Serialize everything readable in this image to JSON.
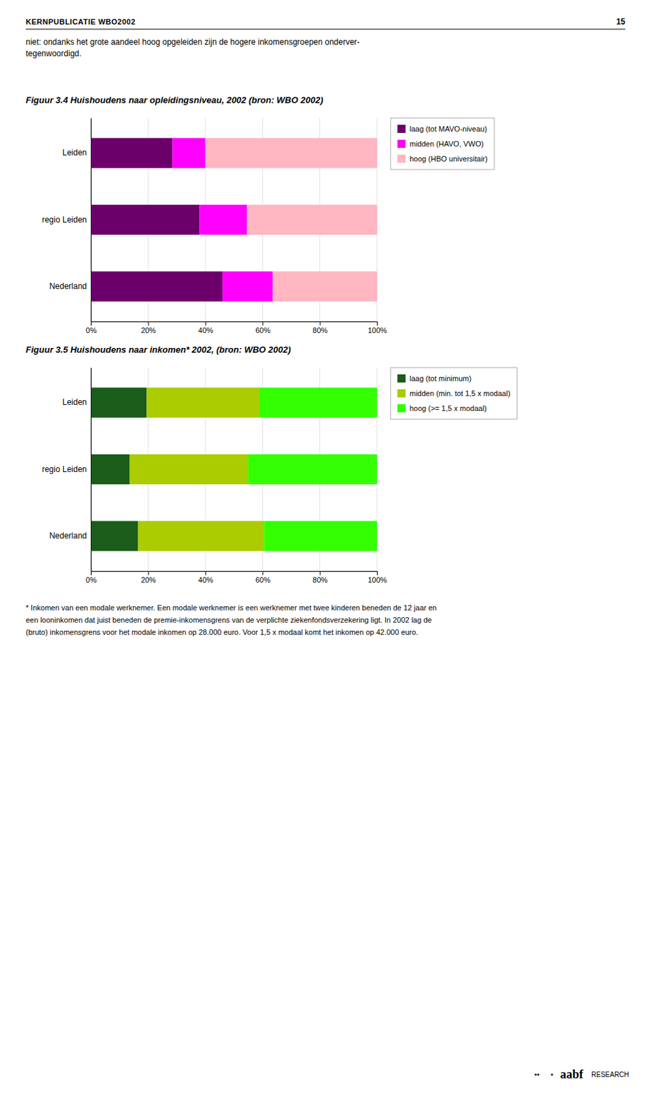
{
  "page_title": "KERNPUBLICATIE WBO2002",
  "page_number": "15",
  "intro": [
    "niet: ondanks het grote aandeel hoog opgeleiden zijn de hogere inkomensgroepen onderver-",
    "tegenwoordigd."
  ],
  "footnotes": [
    "* Inkomen van een modale werknemer. Een modale werknemer is een werknemer met twee kinderen beneden de 12 jaar en",
    "een looninkomen dat juist beneden de premie-inkomensgrens van de verplichte ziekenfondsverzekering ligt. In 2002 lag de",
    "(bruto) inkomensgrens voor het modale inkomen op 28.000 euro. Voor 1,5 x modaal komt het inkomen op 42.000 euro."
  ],
  "logo": [
    "••",
    "•",
    "aabf",
    "RESEARCH"
  ],
  "chart_data": [
    {
      "type": "bar",
      "orientation": "horizontal",
      "stacked": true,
      "title": "Figuur 3.4 Huishoudens naar opleidingsniveau, 2002 (bron: WBO 2002)",
      "categories": [
        "Leiden",
        "regio Leiden",
        "Nederland"
      ],
      "series": [
        {
          "name": "laag (tot MAVO-niveau)",
          "color": "#6B006B",
          "values": [
            0.285,
            0.38,
            0.46
          ]
        },
        {
          "name": "midden (HAVO, VWO)",
          "color": "#FF00FF",
          "values": [
            0.115,
            0.165,
            0.175
          ]
        },
        {
          "name": "hoog (HBO universitair)",
          "color": "#FFB6C1",
          "values": [
            0.6,
            0.455,
            0.365
          ]
        }
      ],
      "xlim": [
        0,
        1.0
      ],
      "xticks": [
        {
          "value": 0,
          "label": "0%"
        },
        {
          "value": 0.2,
          "label": "20%"
        },
        {
          "value": 0.4,
          "label": "40%"
        },
        {
          "value": 0.6,
          "label": "60%"
        },
        {
          "value": 0.8,
          "label": "80%"
        },
        {
          "value": 1.0,
          "label": "100%"
        }
      ],
      "grid": true,
      "legend": "right"
    },
    {
      "type": "bar",
      "orientation": "horizontal",
      "stacked": true,
      "title": "Figuur 3.5 Huishoudens naar inkomen* 2002, (bron: WBO 2002)",
      "categories": [
        "Leiden",
        "regio Leiden",
        "Nederland"
      ],
      "series": [
        {
          "name": "laag (tot minimum)",
          "color": "#1A5C1A",
          "values": [
            0.195,
            0.135,
            0.165
          ]
        },
        {
          "name": "midden (min. tot 1,5 x modaal)",
          "color": "#AACC00",
          "values": [
            0.395,
            0.415,
            0.44
          ]
        },
        {
          "name": "hoog (>= 1,5 x modaal)",
          "color": "#33FF00",
          "values": [
            0.41,
            0.45,
            0.395
          ]
        }
      ],
      "xlim": [
        0,
        1.0
      ],
      "xticks": [
        {
          "value": 0,
          "label": "0%"
        },
        {
          "value": 0.2,
          "label": "20%"
        },
        {
          "value": 0.4,
          "label": "40%"
        },
        {
          "value": 0.6,
          "label": "60%"
        },
        {
          "value": 0.8,
          "label": "80%"
        },
        {
          "value": 1.0,
          "label": "100%"
        }
      ],
      "grid": true,
      "legend": "right"
    }
  ]
}
